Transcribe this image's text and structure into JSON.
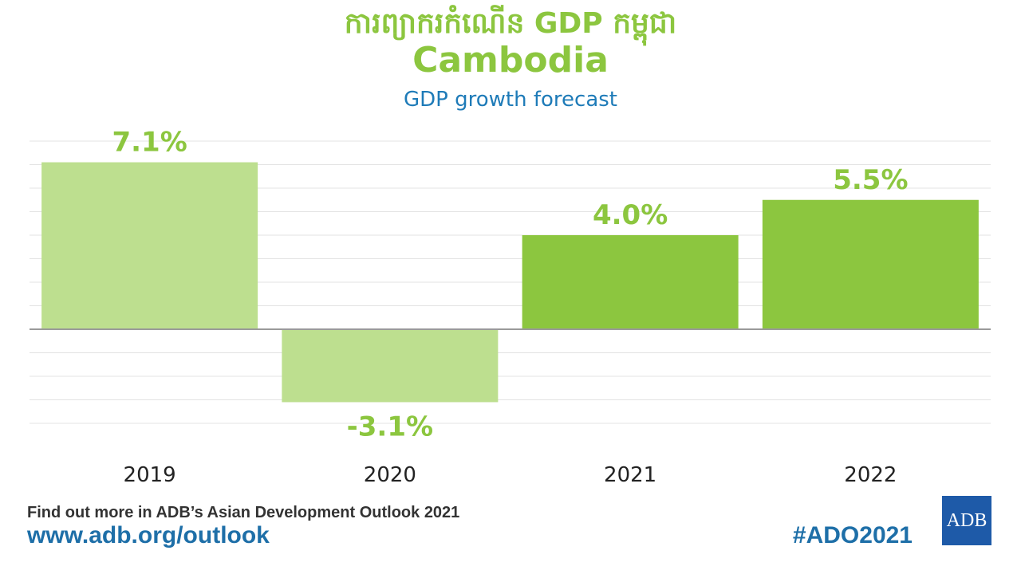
{
  "header": {
    "title_km": "ការព្យាករកំណើន GDP កម្ពុជា",
    "title": "Cambodia",
    "subtitle": "GDP growth forecast"
  },
  "colors": {
    "actual": "#bddf8f",
    "forecast": "#8cc63f",
    "label": "#8cc63f",
    "grid": "#e3e3e3",
    "zero_line": "#9a9a9a"
  },
  "chart_data": {
    "type": "bar",
    "categories": [
      "2019",
      "2020",
      "2021",
      "2022"
    ],
    "values": [
      7.1,
      -3.1,
      4.0,
      5.5
    ],
    "data_labels": [
      "7.1%",
      "-3.1%",
      "4.0%",
      "5.5%"
    ],
    "bar_style": [
      "actual",
      "actual",
      "forecast",
      "forecast"
    ],
    "title": "Cambodia",
    "subtitle": "GDP growth forecast",
    "ylim": [
      -4,
      8
    ],
    "grid": true
  },
  "footer": {
    "text": "Find out more in ADB’s Asian Development Outlook 2021",
    "url": "www.adb.org/outlook",
    "hashtag": "#ADO2021",
    "logo_text": "ADB"
  }
}
